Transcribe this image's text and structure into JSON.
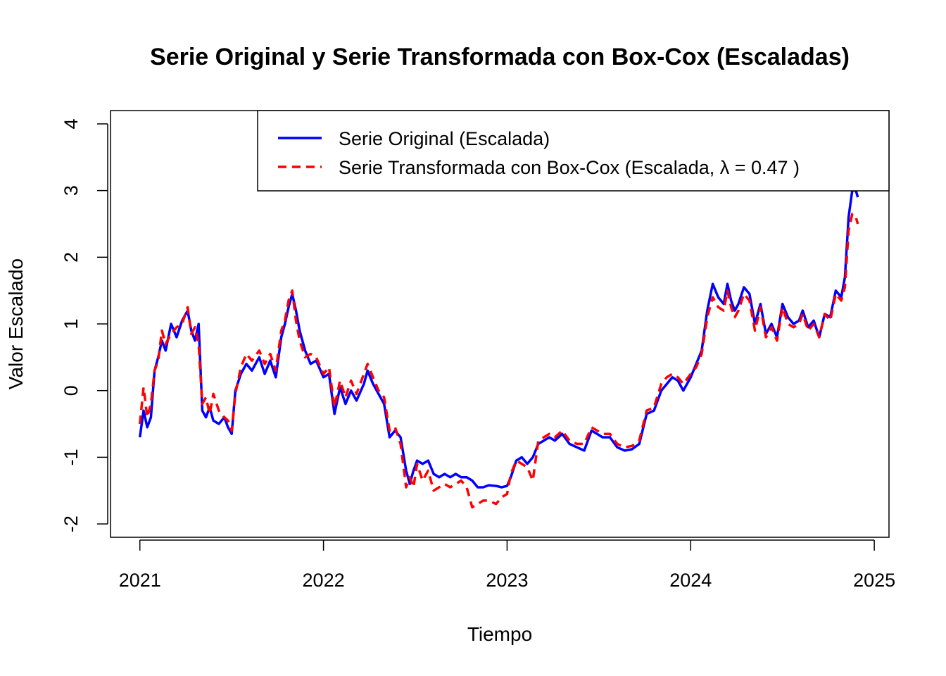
{
  "chart_data": {
    "type": "line",
    "title": "Serie Original y Serie Transformada con Box-Cox (Escaladas)",
    "xlabel": "Tiempo",
    "ylabel": "Valor Escalado",
    "xlim": [
      2020.84,
      2025.08
    ],
    "ylim": [
      -2.2,
      4.2
    ],
    "x_ticks": [
      2021,
      2022,
      2023,
      2024,
      2025
    ],
    "x_tick_labels": [
      "2021",
      "2022",
      "2023",
      "2024",
      "2025"
    ],
    "y_ticks": [
      -2,
      -1,
      0,
      1,
      2,
      3,
      4
    ],
    "y_tick_labels": [
      "-2",
      "-1",
      "0",
      "1",
      "2",
      "3",
      "4"
    ],
    "grid": false,
    "legend_position": "top-right",
    "lambda": 0.47,
    "x": [
      2021.0,
      2021.02,
      2021.04,
      2021.06,
      2021.08,
      2021.1,
      2021.12,
      2021.14,
      2021.17,
      2021.2,
      2021.23,
      2021.26,
      2021.28,
      2021.3,
      2021.32,
      2021.34,
      2021.36,
      2021.38,
      2021.4,
      2021.43,
      2021.46,
      2021.48,
      2021.5,
      2021.52,
      2021.55,
      2021.58,
      2021.61,
      2021.65,
      2021.68,
      2021.71,
      2021.74,
      2021.77,
      2021.79,
      2021.81,
      2021.83,
      2021.85,
      2021.87,
      2021.9,
      2021.93,
      2021.96,
      2022.0,
      2022.03,
      2022.06,
      2022.09,
      2022.12,
      2022.15,
      2022.18,
      2022.22,
      2022.24,
      2022.27,
      2022.3,
      2022.33,
      2022.36,
      2022.39,
      2022.42,
      2022.45,
      2022.47,
      2022.49,
      2022.51,
      2022.54,
      2022.57,
      2022.6,
      2022.63,
      2022.66,
      2022.69,
      2022.72,
      2022.75,
      2022.78,
      2022.81,
      2022.84,
      2022.87,
      2022.9,
      2022.94,
      2022.97,
      2023.0,
      2023.02,
      2023.05,
      2023.08,
      2023.11,
      2023.14,
      2023.17,
      2023.2,
      2023.23,
      2023.26,
      2023.3,
      2023.34,
      2023.38,
      2023.42,
      2023.46,
      2023.49,
      2023.52,
      2023.56,
      2023.6,
      2023.64,
      2023.68,
      2023.72,
      2023.76,
      2023.8,
      2023.84,
      2023.87,
      2023.9,
      2023.93,
      2023.96,
      2024.0,
      2024.03,
      2024.06,
      2024.09,
      2024.12,
      2024.15,
      2024.18,
      2024.2,
      2024.22,
      2024.24,
      2024.26,
      2024.29,
      2024.32,
      2024.35,
      2024.38,
      2024.41,
      2024.44,
      2024.47,
      2024.5,
      2024.53,
      2024.56,
      2024.59,
      2024.61,
      2024.64,
      2024.67,
      2024.7,
      2024.73,
      2024.76,
      2024.79,
      2024.82,
      2024.84,
      2024.86,
      2024.88,
      2024.9,
      2024.91
    ],
    "series": [
      {
        "name": "Serie Original (Escalada)",
        "color": "#0000FF",
        "values": [
          -0.7,
          -0.3,
          -0.55,
          -0.4,
          0.3,
          0.5,
          0.75,
          0.6,
          1.0,
          0.8,
          1.05,
          1.2,
          0.9,
          0.75,
          1.0,
          -0.3,
          -0.4,
          -0.25,
          -0.45,
          -0.5,
          -0.4,
          -0.55,
          -0.65,
          0.0,
          0.25,
          0.4,
          0.3,
          0.5,
          0.25,
          0.45,
          0.2,
          0.8,
          1.0,
          1.25,
          1.45,
          1.2,
          0.9,
          0.6,
          0.4,
          0.45,
          0.2,
          0.25,
          -0.35,
          0.05,
          -0.2,
          0.0,
          -0.15,
          0.1,
          0.3,
          0.1,
          -0.05,
          -0.2,
          -0.7,
          -0.6,
          -0.7,
          -1.2,
          -1.4,
          -1.2,
          -1.05,
          -1.1,
          -1.05,
          -1.25,
          -1.3,
          -1.25,
          -1.3,
          -1.25,
          -1.3,
          -1.3,
          -1.35,
          -1.45,
          -1.45,
          -1.42,
          -1.43,
          -1.45,
          -1.43,
          -1.3,
          -1.05,
          -1.0,
          -1.1,
          -1.0,
          -0.8,
          -0.75,
          -0.7,
          -0.75,
          -0.65,
          -0.8,
          -0.85,
          -0.9,
          -0.6,
          -0.65,
          -0.7,
          -0.7,
          -0.85,
          -0.9,
          -0.88,
          -0.8,
          -0.35,
          -0.3,
          0.0,
          0.1,
          0.2,
          0.15,
          0.0,
          0.2,
          0.4,
          0.6,
          1.2,
          1.6,
          1.4,
          1.3,
          1.6,
          1.35,
          1.2,
          1.3,
          1.55,
          1.45,
          1.0,
          1.3,
          0.85,
          1.0,
          0.8,
          1.3,
          1.1,
          1.0,
          1.05,
          1.2,
          0.95,
          1.05,
          0.8,
          1.15,
          1.1,
          1.5,
          1.4,
          1.7,
          2.6,
          3.0,
          3.0,
          2.9
        ]
      },
      {
        "name": "Serie Transformada con Box-Cox (Escalada, λ = 0.47 )",
        "color": "#FF0000",
        "values": [
          -0.5,
          0.05,
          -0.4,
          -0.2,
          0.3,
          0.45,
          0.9,
          0.7,
          0.85,
          0.95,
          1.0,
          1.25,
          0.85,
          0.95,
          0.7,
          -0.2,
          -0.1,
          -0.35,
          -0.05,
          -0.3,
          -0.4,
          -0.45,
          -0.6,
          -0.05,
          0.35,
          0.55,
          0.45,
          0.6,
          0.4,
          0.55,
          0.3,
          0.9,
          1.05,
          1.35,
          1.5,
          1.05,
          0.75,
          0.5,
          0.55,
          0.5,
          0.25,
          0.35,
          -0.25,
          0.15,
          -0.1,
          0.15,
          -0.05,
          0.25,
          0.4,
          0.2,
          0.0,
          -0.1,
          -0.6,
          -0.55,
          -0.8,
          -1.45,
          -1.3,
          -1.45,
          -1.1,
          -1.35,
          -1.2,
          -1.5,
          -1.45,
          -1.4,
          -1.45,
          -1.4,
          -1.35,
          -1.45,
          -1.75,
          -1.7,
          -1.65,
          -1.65,
          -1.7,
          -1.6,
          -1.55,
          -1.25,
          -1.05,
          -1.1,
          -1.15,
          -1.35,
          -0.75,
          -0.7,
          -0.65,
          -0.7,
          -0.6,
          -0.75,
          -0.8,
          -0.8,
          -0.55,
          -0.6,
          -0.65,
          -0.65,
          -0.8,
          -0.85,
          -0.83,
          -0.75,
          -0.3,
          -0.25,
          0.1,
          0.2,
          0.25,
          0.2,
          0.1,
          0.25,
          0.35,
          0.55,
          1.1,
          1.4,
          1.25,
          1.2,
          1.5,
          1.25,
          1.1,
          1.2,
          1.45,
          1.35,
          0.9,
          1.25,
          0.8,
          0.95,
          0.75,
          1.25,
          1.0,
          0.95,
          1.0,
          1.15,
          0.9,
          1.0,
          0.8,
          1.15,
          1.05,
          1.45,
          1.35,
          1.55,
          2.4,
          2.65,
          2.6,
          2.5
        ]
      }
    ]
  }
}
